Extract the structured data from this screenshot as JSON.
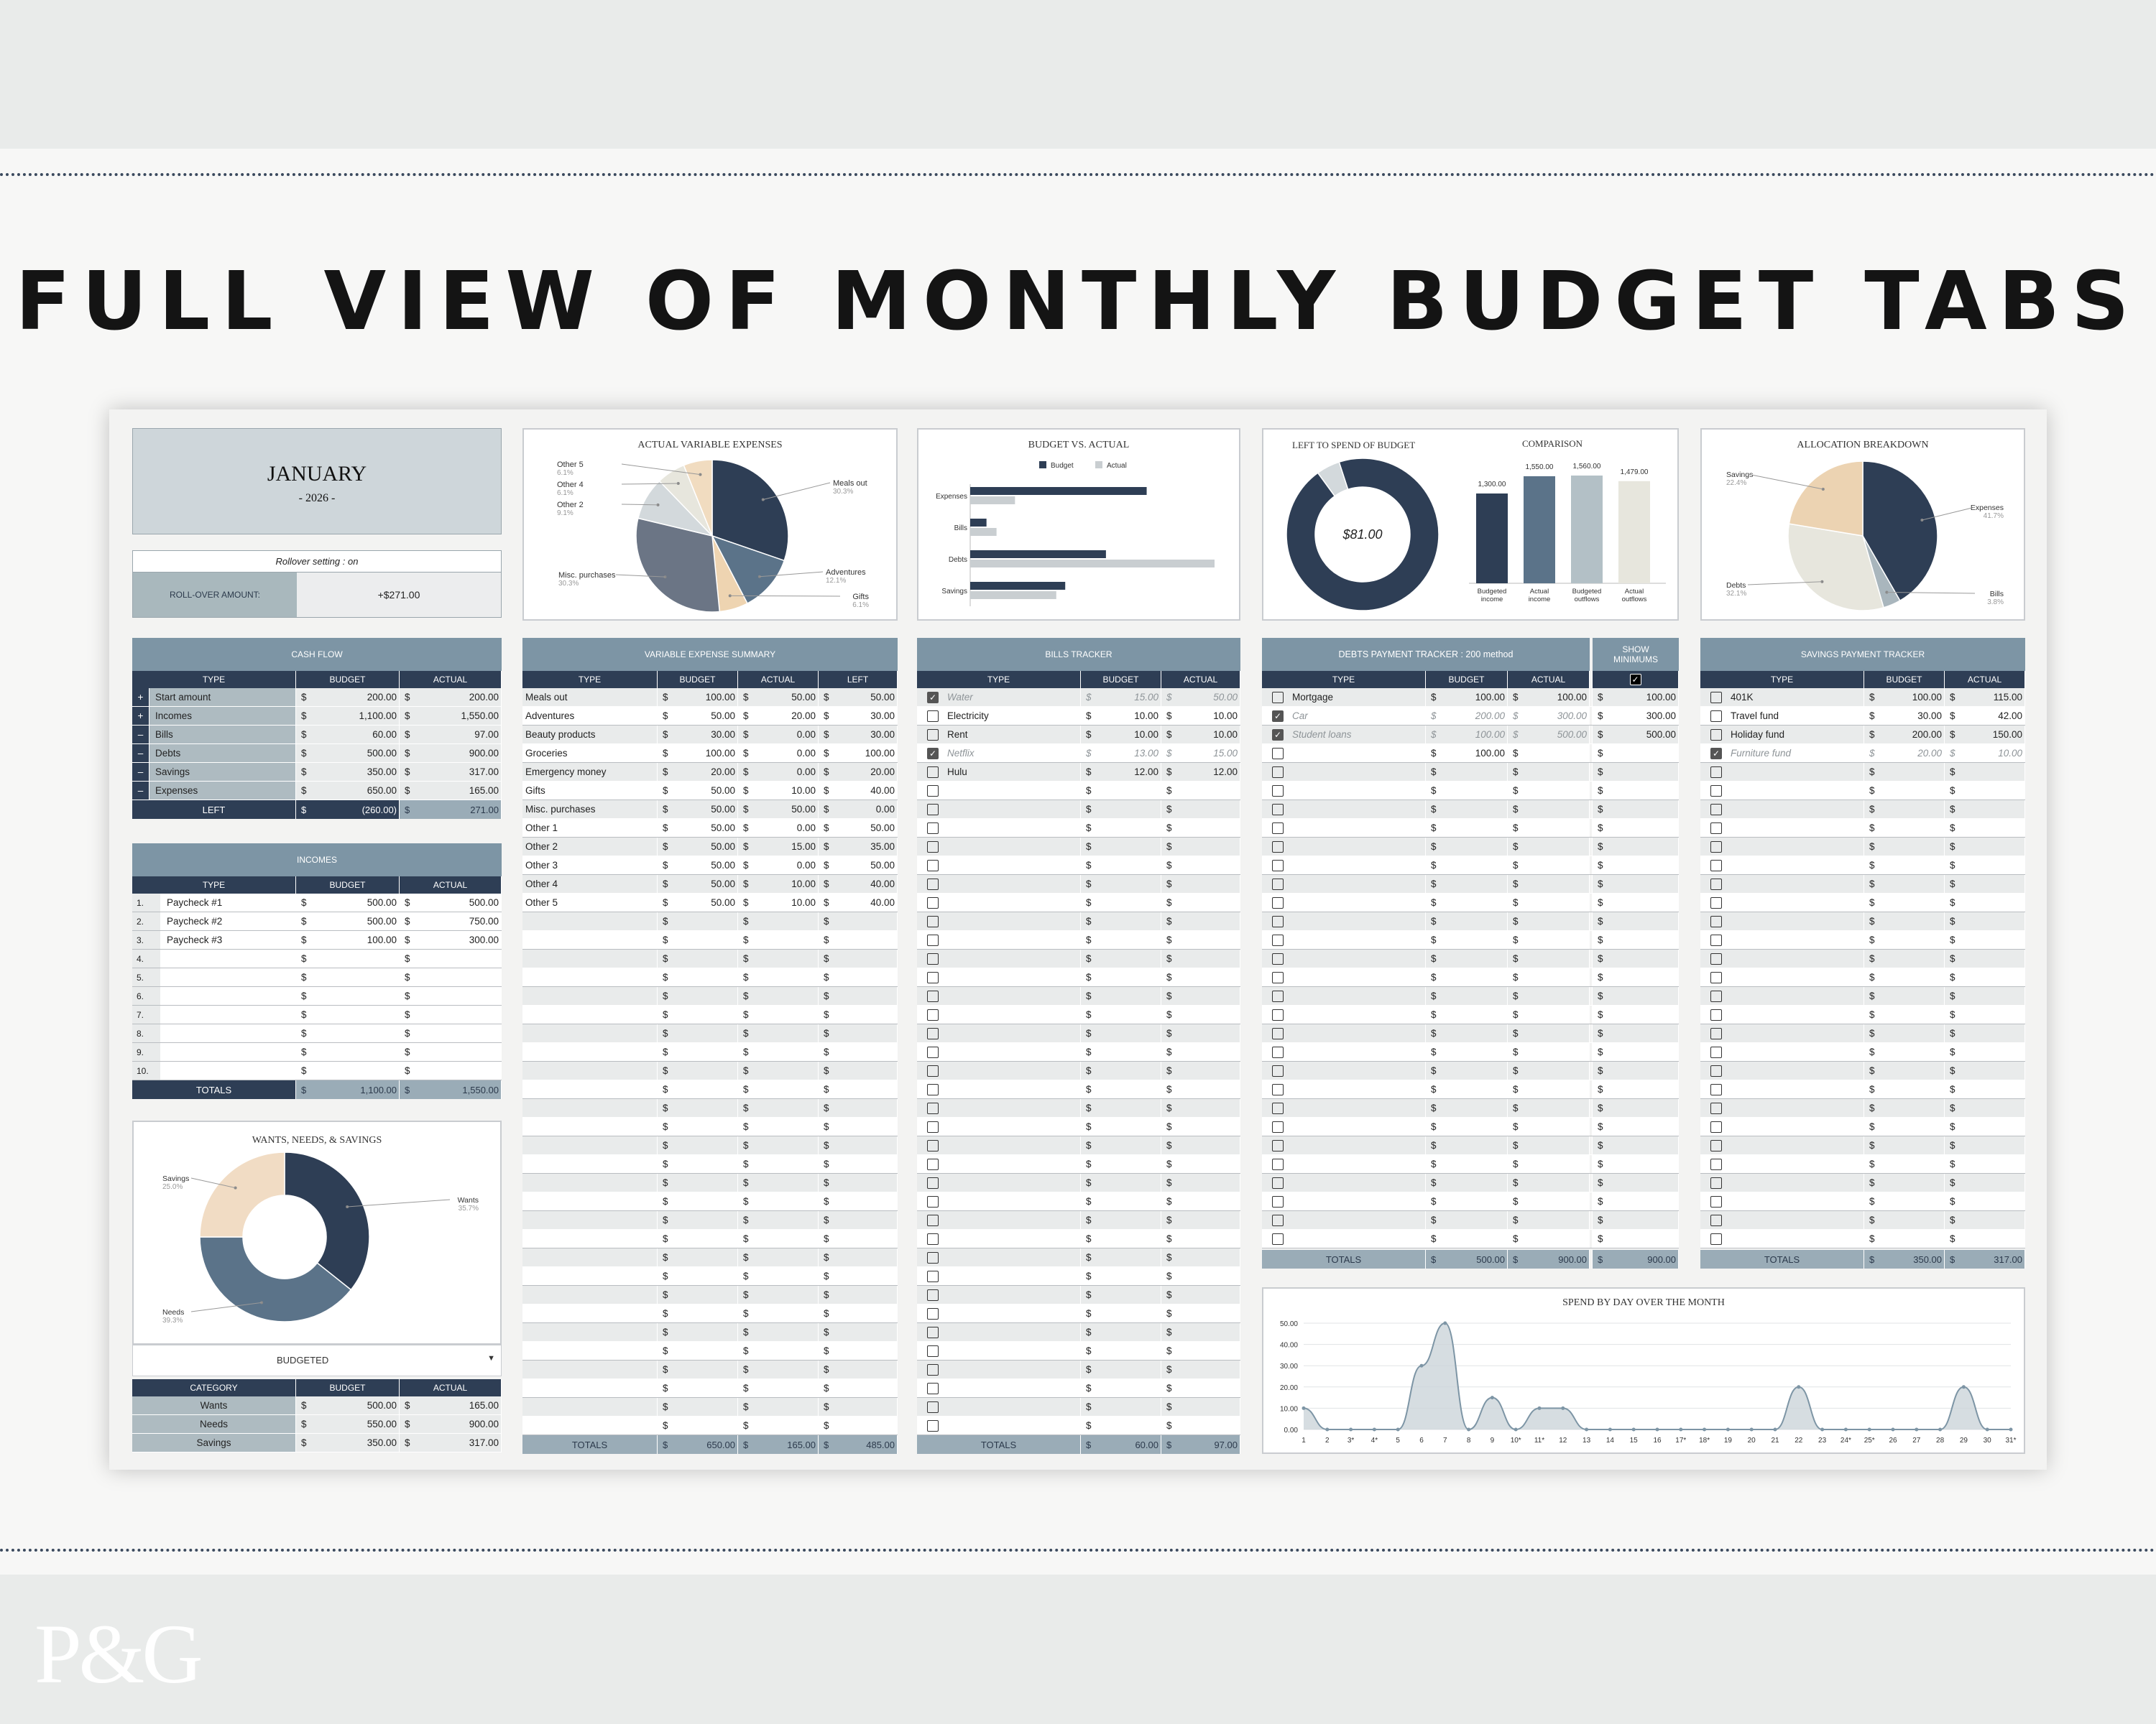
{
  "headline": "FULL VIEW OF MONTHLY BUDGET TABS",
  "logo": "P&G",
  "month": {
    "name": "JANUARY",
    "year": "- 2026 -"
  },
  "rollover": {
    "setting": "Rollover setting : on",
    "label": "ROLL-OVER AMOUNT:",
    "value": "+$271.00"
  },
  "cashflow": {
    "title": "CASH FLOW",
    "headers": [
      "TYPE",
      "BUDGET",
      "ACTUAL"
    ],
    "rows": [
      {
        "sign": "+",
        "type": "Start amount",
        "budget": "200.00",
        "actual": "200.00"
      },
      {
        "sign": "+",
        "type": "Incomes",
        "budget": "1,100.00",
        "actual": "1,550.00"
      },
      {
        "sign": "–",
        "type": "Bills",
        "budget": "60.00",
        "actual": "97.00"
      },
      {
        "sign": "–",
        "type": "Debts",
        "budget": "500.00",
        "actual": "900.00"
      },
      {
        "sign": "–",
        "type": "Savings",
        "budget": "350.00",
        "actual": "317.00"
      },
      {
        "sign": "–",
        "type": "Expenses",
        "budget": "650.00",
        "actual": "165.00"
      }
    ],
    "left": {
      "label": "LEFT",
      "budget": "(260.00)",
      "actual": "271.00"
    }
  },
  "incomes": {
    "title": "INCOMES",
    "headers": [
      "TYPE",
      "BUDGET",
      "ACTUAL"
    ],
    "rows": [
      {
        "n": "1.",
        "type": "Paycheck #1",
        "budget": "500.00",
        "actual": "500.00"
      },
      {
        "n": "2.",
        "type": "Paycheck #2",
        "budget": "500.00",
        "actual": "750.00"
      },
      {
        "n": "3.",
        "type": "Paycheck #3",
        "budget": "100.00",
        "actual": "300.00"
      },
      {
        "n": "4.",
        "type": "",
        "budget": "",
        "actual": ""
      },
      {
        "n": "5.",
        "type": "",
        "budget": "",
        "actual": ""
      },
      {
        "n": "6.",
        "type": "",
        "budget": "",
        "actual": ""
      },
      {
        "n": "7.",
        "type": "",
        "budget": "",
        "actual": ""
      },
      {
        "n": "8.",
        "type": "",
        "budget": "",
        "actual": ""
      },
      {
        "n": "9.",
        "type": "",
        "budget": "",
        "actual": ""
      },
      {
        "n": "10.",
        "type": "",
        "budget": "",
        "actual": ""
      }
    ],
    "totals": {
      "label": "TOTALS",
      "budget": "1,100.00",
      "actual": "1,550.00"
    }
  },
  "wns": {
    "title": "WANTS, NEEDS, & SAVINGS",
    "dropdown": "BUDGETED",
    "headers": [
      "CATEGORY",
      "BUDGET",
      "ACTUAL"
    ],
    "rows": [
      {
        "category": "Wants",
        "budget": "500.00",
        "actual": "165.00"
      },
      {
        "category": "Needs",
        "budget": "550.00",
        "actual": "900.00"
      },
      {
        "category": "Savings",
        "budget": "350.00",
        "actual": "317.00"
      }
    ]
  },
  "variable": {
    "title": "VARIABLE EXPENSE SUMMARY",
    "headers": [
      "TYPE",
      "BUDGET",
      "ACTUAL",
      "LEFT"
    ],
    "rows": [
      {
        "type": "Meals out",
        "budget": "100.00",
        "actual": "50.00",
        "left": "50.00"
      },
      {
        "type": "Adventures",
        "budget": "50.00",
        "actual": "20.00",
        "left": "30.00"
      },
      {
        "type": "Beauty products",
        "budget": "30.00",
        "actual": "0.00",
        "left": "30.00"
      },
      {
        "type": "Groceries",
        "budget": "100.00",
        "actual": "0.00",
        "left": "100.00"
      },
      {
        "type": "Emergency money",
        "budget": "20.00",
        "actual": "0.00",
        "left": "20.00"
      },
      {
        "type": "Gifts",
        "budget": "50.00",
        "actual": "10.00",
        "left": "40.00"
      },
      {
        "type": "Misc. purchases",
        "budget": "50.00",
        "actual": "50.00",
        "left": "0.00"
      },
      {
        "type": "Other 1",
        "budget": "50.00",
        "actual": "0.00",
        "left": "50.00"
      },
      {
        "type": "Other 2",
        "budget": "50.00",
        "actual": "15.00",
        "left": "35.00"
      },
      {
        "type": "Other 3",
        "budget": "50.00",
        "actual": "0.00",
        "left": "50.00"
      },
      {
        "type": "Other 4",
        "budget": "50.00",
        "actual": "10.00",
        "left": "40.00"
      },
      {
        "type": "Other 5",
        "budget": "50.00",
        "actual": "10.00",
        "left": "40.00"
      }
    ],
    "totals": {
      "label": "TOTALS",
      "budget": "650.00",
      "actual": "165.00",
      "left": "485.00"
    }
  },
  "bills": {
    "title": "BILLS TRACKER",
    "headers": [
      "TYPE",
      "BUDGET",
      "ACTUAL"
    ],
    "rows": [
      {
        "checked": true,
        "type": "Water",
        "budget": "15.00",
        "actual": "50.00"
      },
      {
        "checked": false,
        "type": "Electricity",
        "budget": "10.00",
        "actual": "10.00"
      },
      {
        "checked": false,
        "type": "Rent",
        "budget": "10.00",
        "actual": "10.00"
      },
      {
        "checked": true,
        "type": "Netflix",
        "budget": "13.00",
        "actual": "15.00"
      },
      {
        "checked": false,
        "type": "Hulu",
        "budget": "12.00",
        "actual": "12.00"
      }
    ],
    "totals": {
      "label": "TOTALS",
      "budget": "60.00",
      "actual": "97.00"
    }
  },
  "debts": {
    "title": "DEBTS PAYMENT TRACKER : 200 method",
    "show_min_label": "SHOW MINIMUMS",
    "headers": [
      "TYPE",
      "BUDGET",
      "ACTUAL"
    ],
    "rows": [
      {
        "checked": false,
        "type": "Mortgage",
        "budget": "100.00",
        "actual": "100.00",
        "min": "100.00"
      },
      {
        "checked": true,
        "type": "Car",
        "budget": "200.00",
        "actual": "300.00",
        "min": "300.00"
      },
      {
        "checked": true,
        "type": "Student loans",
        "budget": "100.00",
        "actual": "500.00",
        "min": "500.00"
      },
      {
        "checked": false,
        "type": "",
        "budget": "100.00",
        "actual": "",
        "min": ""
      }
    ],
    "totals": {
      "label": "TOTALS",
      "budget": "500.00",
      "actual": "900.00",
      "min": "900.00"
    }
  },
  "savings": {
    "title": "SAVINGS PAYMENT TRACKER",
    "headers": [
      "TYPE",
      "BUDGET",
      "ACTUAL"
    ],
    "rows": [
      {
        "checked": false,
        "type": "401K",
        "budget": "100.00",
        "actual": "115.00"
      },
      {
        "checked": false,
        "type": "Travel fund",
        "budget": "30.00",
        "actual": "42.00"
      },
      {
        "checked": false,
        "type": "Holiday fund",
        "budget": "200.00",
        "actual": "150.00"
      },
      {
        "checked": true,
        "type": "Furniture fund",
        "budget": "20.00",
        "actual": "10.00"
      }
    ],
    "totals": {
      "label": "TOTALS",
      "budget": "350.00",
      "actual": "317.00"
    }
  },
  "currency": "$",
  "colors": {
    "navy": "#2e3e55",
    "steel": "#5b7389",
    "slate": "#6b7585",
    "sand": "#ecd3b2",
    "cream": "#e7e6dd",
    "mist": "#d3d9dc",
    "header": "#7d95a5"
  },
  "chart_data": [
    {
      "type": "pie",
      "title": "ACTUAL VARIABLE EXPENSES",
      "labels": [
        "Meals out",
        "Adventures",
        "Gifts",
        "Misc. purchases",
        "Other 2",
        "Other 4",
        "Other 5"
      ],
      "values": [
        30.3,
        12.1,
        6.1,
        30.3,
        9.1,
        6.1,
        6.1
      ],
      "pct": [
        "30.3%",
        "12.1%",
        "6.1%",
        "30.3%",
        "9.1%",
        "6.1%",
        "6.1%"
      ],
      "colors": [
        "#2e3e55",
        "#5b7389",
        "#eed4b1",
        "#6b7585",
        "#d3d9dc",
        "#e7e6dd",
        "#f1dcc0"
      ]
    },
    {
      "type": "bar",
      "title": "BUDGET VS. ACTUAL",
      "orientation": "horizontal",
      "categories": [
        "Expenses",
        "Bills",
        "Debts",
        "Savings"
      ],
      "series": [
        {
          "name": "Budget",
          "values": [
            650,
            60,
            500,
            350
          ]
        },
        {
          "name": "Actual",
          "values": [
            165,
            97,
            900,
            317
          ]
        }
      ],
      "legend": "top"
    },
    {
      "type": "pie",
      "title": "LEFT TO SPEND OF BUDGET",
      "center_label": "$81.00",
      "values": [
        95,
        5
      ],
      "colors": [
        "#2e3e55",
        "#d3d9dc"
      ]
    },
    {
      "type": "bar",
      "title": "COMPARISON",
      "categories": [
        "Budgeted income",
        "Actual income",
        "Budgeted outflows",
        "Actual outflows"
      ],
      "values": [
        1300,
        1550,
        1560,
        1479
      ],
      "data_labels": [
        "1,300.00",
        "1,550.00",
        "1,560.00",
        "1,479.00"
      ],
      "colors": [
        "#2e3e55",
        "#5b7389",
        "#b3c0c6",
        "#e7e6dd"
      ]
    },
    {
      "type": "pie",
      "title": "ALLOCATION BREAKDOWN",
      "labels": [
        "Expenses",
        "Bills",
        "Debts",
        "Savings"
      ],
      "values": [
        41.7,
        3.8,
        32.1,
        22.4
      ],
      "pct": [
        "41.7%",
        "3.8%",
        "32.1%",
        "22.4%"
      ],
      "colors": [
        "#2e3e55",
        "#a9b6bd",
        "#e7e6dd",
        "#ecd3b2"
      ]
    },
    {
      "type": "pie",
      "title": "WANTS, NEEDS, & SAVINGS",
      "labels": [
        "Wants",
        "Needs",
        "Savings"
      ],
      "values": [
        35.7,
        39.3,
        25.0
      ],
      "pct": [
        "35.7%",
        "39.3%",
        "25.0%"
      ],
      "colors": [
        "#2e3e55",
        "#5b7389",
        "#f1dcc4"
      ]
    },
    {
      "type": "area",
      "title": "SPEND BY DAY OVER THE MONTH",
      "x": [
        "1",
        "2",
        "3*",
        "4*",
        "5",
        "6",
        "7",
        "8",
        "9",
        "10*",
        "11*",
        "12",
        "13",
        "14",
        "15",
        "16",
        "17*",
        "18*",
        "19",
        "20",
        "21",
        "22",
        "23",
        "24*",
        "25*",
        "26",
        "27",
        "28",
        "29",
        "30",
        "31*"
      ],
      "y": [
        10,
        0,
        0,
        0,
        0,
        30,
        50,
        0,
        15,
        0,
        10,
        10,
        0,
        0,
        0,
        0,
        0,
        0,
        0,
        0,
        0,
        20,
        0,
        0,
        0,
        0,
        0,
        0,
        20,
        0,
        0
      ],
      "ylim": [
        0,
        50
      ],
      "yticks": [
        "50.00",
        "40.00",
        "30.00",
        "20.00",
        "10.00",
        "0.00"
      ]
    }
  ]
}
